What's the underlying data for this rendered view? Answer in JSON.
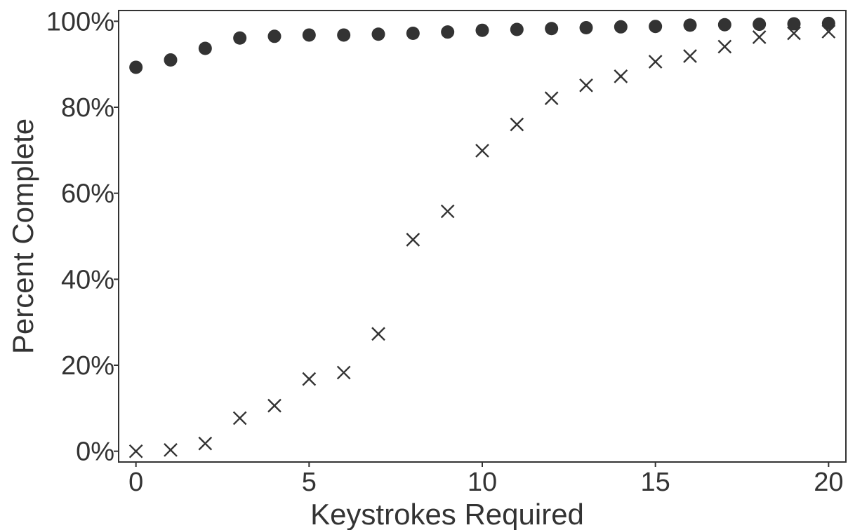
{
  "chart_data": {
    "type": "scatter",
    "xlabel": "Keystrokes Required",
    "ylabel": "Percent Complete",
    "xlim": [
      -0.5,
      20.5
    ],
    "ylim": [
      -2.5,
      102.5
    ],
    "xticks": [
      0,
      5,
      10,
      15,
      20
    ],
    "xtick_labels": [
      "0",
      "5",
      "10",
      "15",
      "20"
    ],
    "yticks": [
      0,
      20,
      40,
      60,
      80,
      100
    ],
    "ytick_labels": [
      "0%",
      "20%",
      "40%",
      "60%",
      "80%",
      "100%"
    ],
    "grid": false,
    "colors": {
      "marker": "#333333",
      "axis": "#333333"
    },
    "series": [
      {
        "marker": "circle",
        "x": [
          0,
          1,
          2,
          3,
          4,
          5,
          6,
          7,
          8,
          9,
          10,
          11,
          12,
          13,
          14,
          15,
          16,
          17,
          18,
          19,
          20
        ],
        "values": [
          89.3,
          91.0,
          93.7,
          96.1,
          96.5,
          96.8,
          96.8,
          97.0,
          97.2,
          97.5,
          97.9,
          98.1,
          98.3,
          98.5,
          98.7,
          98.8,
          99.1,
          99.2,
          99.3,
          99.4,
          99.5
        ]
      },
      {
        "marker": "x",
        "x": [
          0,
          1,
          2,
          3,
          4,
          5,
          6,
          7,
          8,
          9,
          10,
          11,
          12,
          13,
          14,
          15,
          16,
          17,
          18,
          19,
          20
        ],
        "values": [
          0.0,
          0.3,
          1.8,
          7.7,
          10.6,
          16.8,
          18.3,
          27.3,
          49.2,
          55.8,
          69.9,
          76.0,
          82.1,
          85.1,
          87.2,
          90.6,
          91.9,
          94.1,
          96.3,
          97.2,
          97.6
        ]
      }
    ]
  }
}
